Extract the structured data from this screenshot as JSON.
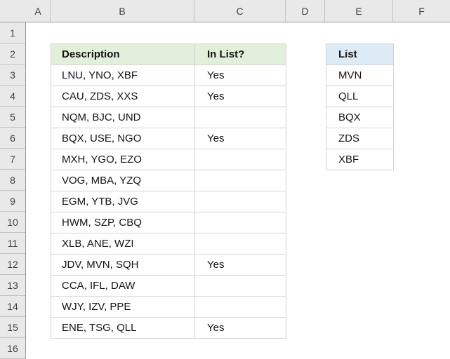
{
  "grid": {
    "column_headers": [
      "A",
      "B",
      "C",
      "D",
      "E",
      "F"
    ],
    "row_headers": [
      "1",
      "2",
      "3",
      "4",
      "5",
      "6",
      "7",
      "8",
      "9",
      "10",
      "11",
      "12",
      "13",
      "14",
      "15",
      "16"
    ]
  },
  "main_table": {
    "columns": [
      "Description",
      "In List?"
    ],
    "rows": [
      [
        "LNU, YNO, XBF",
        "Yes"
      ],
      [
        "CAU, ZDS, XXS",
        "Yes"
      ],
      [
        "NQM, BJC, UND",
        ""
      ],
      [
        "BQX, USE, NGO",
        "Yes"
      ],
      [
        "MXH, YGO, EZO",
        ""
      ],
      [
        "VOG, MBA, YZQ",
        ""
      ],
      [
        "EGM, YTB, JVG",
        ""
      ],
      [
        "HWM, SZP, CBQ",
        ""
      ],
      [
        "XLB, ANE, WZI",
        ""
      ],
      [
        "JDV, MVN, SQH",
        "Yes"
      ],
      [
        "CCA, IFL, DAW",
        ""
      ],
      [
        "WJY, IZV, PPE",
        ""
      ],
      [
        "ENE, TSG, QLL",
        "Yes"
      ]
    ]
  },
  "list_table": {
    "header": "List",
    "items": [
      "MVN",
      "QLL",
      "BQX",
      "ZDS",
      "XBF"
    ]
  },
  "colors": {
    "main_header_bg": "#E2EFDA",
    "list_header_bg": "#DDEBF7",
    "table_border": "#D4D4D4",
    "header_bg": "#E9E9E9",
    "header_border": "#9B9B9B",
    "header_divider": "#C3C3C3",
    "triangle": "#A9A9A9"
  }
}
